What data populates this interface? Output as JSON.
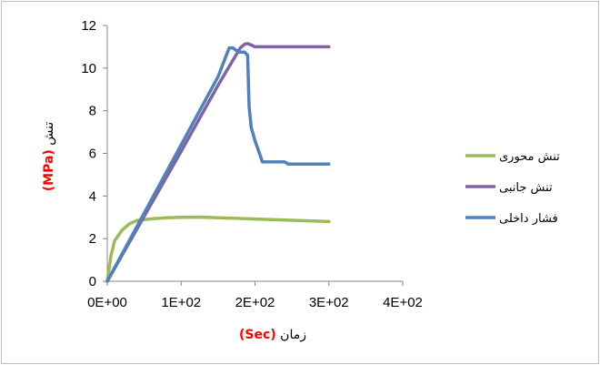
{
  "chart_data": {
    "type": "line",
    "xlabel_text": "زمان ",
    "xlabel_unit": "(Sec)",
    "ylabel_text": "تنش ",
    "ylabel_unit": "(MPa)",
    "xlim": [
      0,
      400
    ],
    "ylim": [
      0,
      12
    ],
    "x_ticks": [
      0,
      100,
      200,
      300,
      400
    ],
    "x_tick_labels": [
      "0E+00",
      "1E+02",
      "2E+02",
      "3E+02",
      "4E+02"
    ],
    "y_ticks": [
      0,
      2,
      4,
      6,
      8,
      10,
      12
    ],
    "y_tick_labels": [
      "0",
      "2",
      "4",
      "6",
      "8",
      "10",
      "12"
    ],
    "legend_position": "right",
    "grid": false,
    "series": [
      {
        "name": "تنش محوری",
        "color": "#9bbb59",
        "points": [
          [
            0,
            0
          ],
          [
            5,
            1.2
          ],
          [
            10,
            1.9
          ],
          [
            20,
            2.4
          ],
          [
            30,
            2.7
          ],
          [
            40,
            2.85
          ],
          [
            60,
            2.93
          ],
          [
            80,
            2.98
          ],
          [
            100,
            3.0
          ],
          [
            125,
            3.01
          ],
          [
            150,
            2.98
          ],
          [
            200,
            2.92
          ],
          [
            250,
            2.86
          ],
          [
            300,
            2.8
          ]
        ]
      },
      {
        "name": "تنش جانبی",
        "color": "#8064a2",
        "points": [
          [
            0,
            0
          ],
          [
            50,
            3.05
          ],
          [
            100,
            6.1
          ],
          [
            150,
            9.2
          ],
          [
            180,
            10.95
          ],
          [
            186,
            11.12
          ],
          [
            190,
            11.15
          ],
          [
            195,
            11.08
          ],
          [
            200,
            11.0
          ],
          [
            250,
            11.0
          ],
          [
            300,
            11.0
          ]
        ]
      },
      {
        "name": "فشار داخلی",
        "color": "#4f81bd",
        "points": [
          [
            0,
            0
          ],
          [
            50,
            3.2
          ],
          [
            100,
            6.4
          ],
          [
            150,
            9.6
          ],
          [
            165,
            10.95
          ],
          [
            170,
            10.95
          ],
          [
            178,
            10.75
          ],
          [
            186,
            10.75
          ],
          [
            190,
            10.6
          ],
          [
            192,
            8.2
          ],
          [
            195,
            7.2
          ],
          [
            200,
            6.6
          ],
          [
            205,
            6.1
          ],
          [
            210,
            5.6
          ],
          [
            240,
            5.6
          ],
          [
            245,
            5.5
          ],
          [
            300,
            5.5
          ]
        ]
      }
    ]
  }
}
